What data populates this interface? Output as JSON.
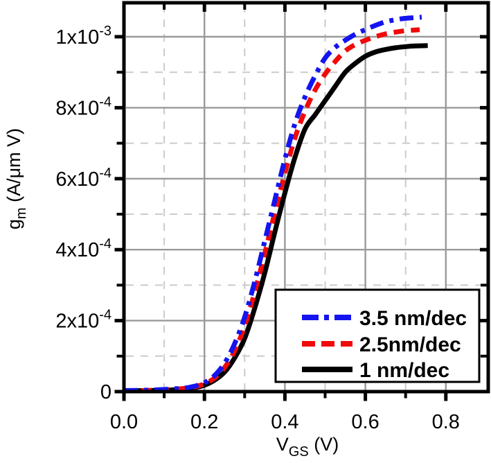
{
  "figure": {
    "background": "#ffffff",
    "axis_color": "#000000",
    "grid_major_color": "#9a9a9a",
    "grid_minor_color": "#cbcbcb"
  },
  "chart_data": {
    "type": "line",
    "title": "",
    "xlabel": {
      "main": "V",
      "sub": "GS",
      "rest": " (V)",
      "text": "V_GS (V)"
    },
    "ylabel": {
      "main": "g",
      "sub": "m",
      "rest": " (A/μm V)",
      "text": "g_m (A/μm V)"
    },
    "xlim": [
      0,
      0.9
    ],
    "ylim": [
      0,
      0.0011
    ],
    "x_major_ticks": [
      0.0,
      0.2,
      0.4,
      0.6,
      0.8
    ],
    "x_minor_ticks": [
      0.1,
      0.3,
      0.5,
      0.7
    ],
    "x_tick_labels": [
      "0.0",
      "0.2",
      "0.4",
      "0.6",
      "0.8"
    ],
    "y_major_ticks": [
      0,
      0.0002,
      0.0004,
      0.0006,
      0.0008,
      0.001
    ],
    "y_minor_ticks": [
      0.0001,
      0.0003,
      0.0005,
      0.0007,
      0.0009
    ],
    "y_tick_labels": [
      {
        "base": "0",
        "exp": ""
      },
      {
        "base": "2x10",
        "exp": "-4"
      },
      {
        "base": "4x10",
        "exp": "-4"
      },
      {
        "base": "6x10",
        "exp": "-4"
      },
      {
        "base": "8x10",
        "exp": "-4"
      },
      {
        "base": "1x10",
        "exp": "-3"
      }
    ],
    "grid": {
      "major": "solid",
      "minor": "dashed"
    },
    "legend_position": "lower-right",
    "series": [
      {
        "name": "3.5 nm/dec",
        "color": "#1414f0",
        "line_style": "dash-dot",
        "x": [
          0,
          0.05,
          0.1,
          0.15,
          0.175,
          0.2,
          0.225,
          0.25,
          0.275,
          0.3,
          0.325,
          0.35,
          0.375,
          0.4,
          0.425,
          0.45,
          0.475,
          0.5,
          0.525,
          0.55,
          0.575,
          0.6,
          0.625,
          0.65,
          0.675,
          0.7,
          0.725,
          0.74
        ],
        "y": [
          3e-06,
          4e-06,
          6e-06,
          1e-05,
          1.5e-05,
          2.5e-05,
          4.5e-05,
          8e-05,
          0.000135,
          0.00021,
          0.00031,
          0.000425,
          0.00054,
          0.000655,
          0.000755,
          0.00083,
          0.00089,
          0.00094,
          0.00097,
          0.00099,
          0.001007,
          0.00102,
          0.001032,
          0.001042,
          0.001048,
          0.001052,
          0.001054,
          0.001055
        ]
      },
      {
        "name": "2.5nm/dec",
        "color": "#f00a0a",
        "line_style": "dashed",
        "x": [
          0,
          0.05,
          0.1,
          0.15,
          0.175,
          0.2,
          0.225,
          0.25,
          0.275,
          0.3,
          0.325,
          0.35,
          0.375,
          0.4,
          0.425,
          0.45,
          0.475,
          0.5,
          0.525,
          0.55,
          0.575,
          0.6,
          0.625,
          0.65,
          0.675,
          0.7,
          0.725,
          0.735
        ],
        "y": [
          2e-06,
          3e-06,
          5e-06,
          9e-06,
          1.3e-05,
          2.2e-05,
          3.8e-05,
          6.8e-05,
          0.000115,
          0.000185,
          0.00028,
          0.00039,
          0.000505,
          0.000615,
          0.000715,
          0.00079,
          0.00085,
          0.000895,
          0.00093,
          0.00096,
          0.000978,
          0.00099,
          0.001,
          0.001008,
          0.001013,
          0.001017,
          0.001019,
          0.00102
        ]
      },
      {
        "name": "1 nm/dec",
        "color": "#000000",
        "line_style": "solid",
        "x": [
          0,
          0.05,
          0.1,
          0.15,
          0.175,
          0.2,
          0.225,
          0.25,
          0.275,
          0.3,
          0.325,
          0.35,
          0.375,
          0.4,
          0.425,
          0.45,
          0.475,
          0.5,
          0.525,
          0.55,
          0.575,
          0.6,
          0.625,
          0.65,
          0.675,
          0.7,
          0.725,
          0.755
        ],
        "y": [
          2e-06,
          3e-06,
          4e-06,
          7e-06,
          1.1e-05,
          1.8e-05,
          3.2e-05,
          5.5e-05,
          9.5e-05,
          0.00015,
          0.000235,
          0.000335,
          0.00045,
          0.00056,
          0.00066,
          0.00074,
          0.00078,
          0.00082,
          0.00086,
          0.0009,
          0.000925,
          0.000945,
          0.000957,
          0.000964,
          0.000969,
          0.000972,
          0.000974,
          0.000975
        ]
      }
    ]
  }
}
